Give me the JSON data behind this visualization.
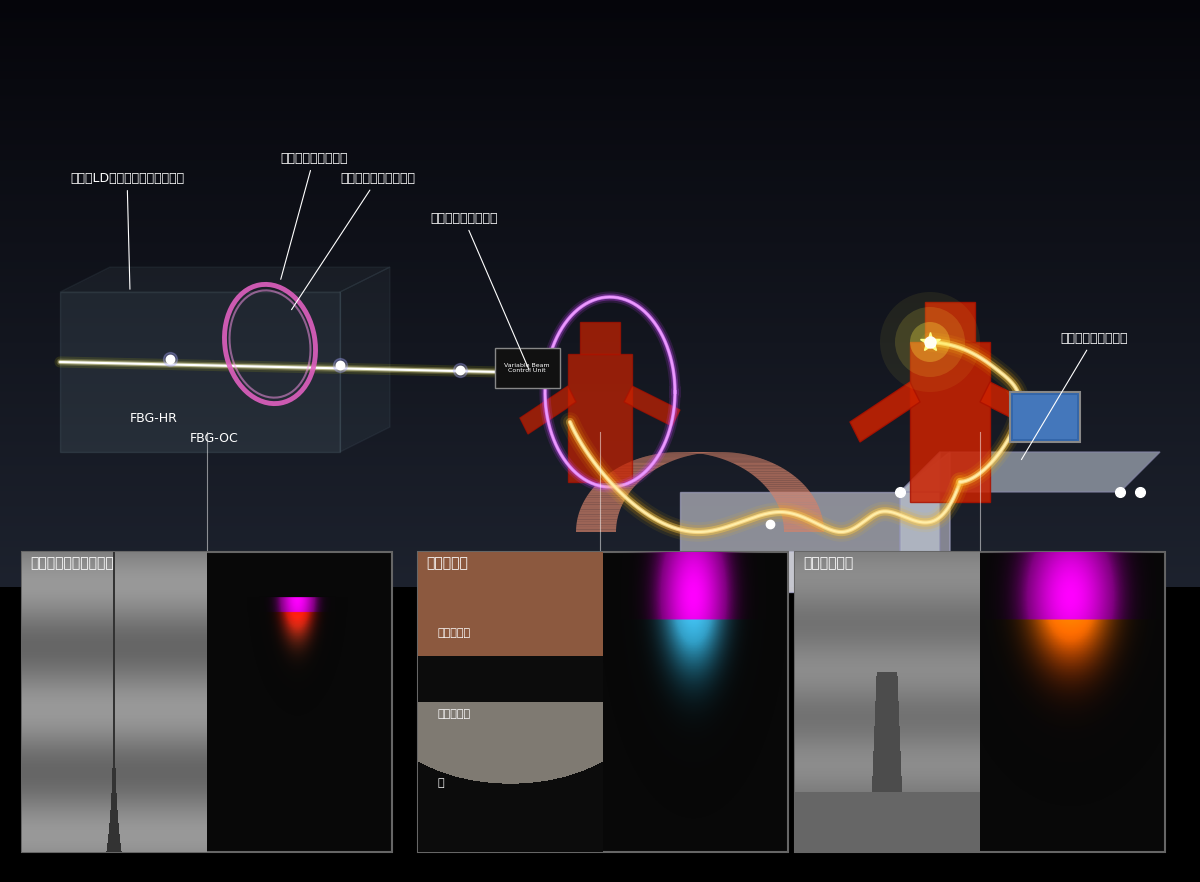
{
  "bg_color": "#2a3040",
  "bg_color_bottom": "#050508",
  "title_color": "#ffffff",
  "label_color": "#ffffff",
  "labels": {
    "excitation_ld": "励起用LD（レーザダイオード）",
    "pump_combiner": "ポンプコンバイナー",
    "active_fiber": "アクティブファイバー",
    "beam_variable": "ビーム可変ユニット",
    "fbg_hr": "FBG-HR",
    "fbg_oc": "FBG-OC",
    "process_fiber": "プロセスファイバー",
    "high_speed": "高速・深溶け込み溶接",
    "dissimilar": "異種材接合",
    "filler": "フィラー溶接",
    "brazing_alloy": "蝋付け合金",
    "stainless": "ステンレス",
    "copper": "銅"
  },
  "box_positions": {
    "panel1": [
      0.02,
      0.0,
      0.3,
      0.3
    ],
    "panel2": [
      0.36,
      0.0,
      0.3,
      0.3
    ],
    "panel3": [
      0.68,
      0.0,
      0.3,
      0.3
    ]
  }
}
